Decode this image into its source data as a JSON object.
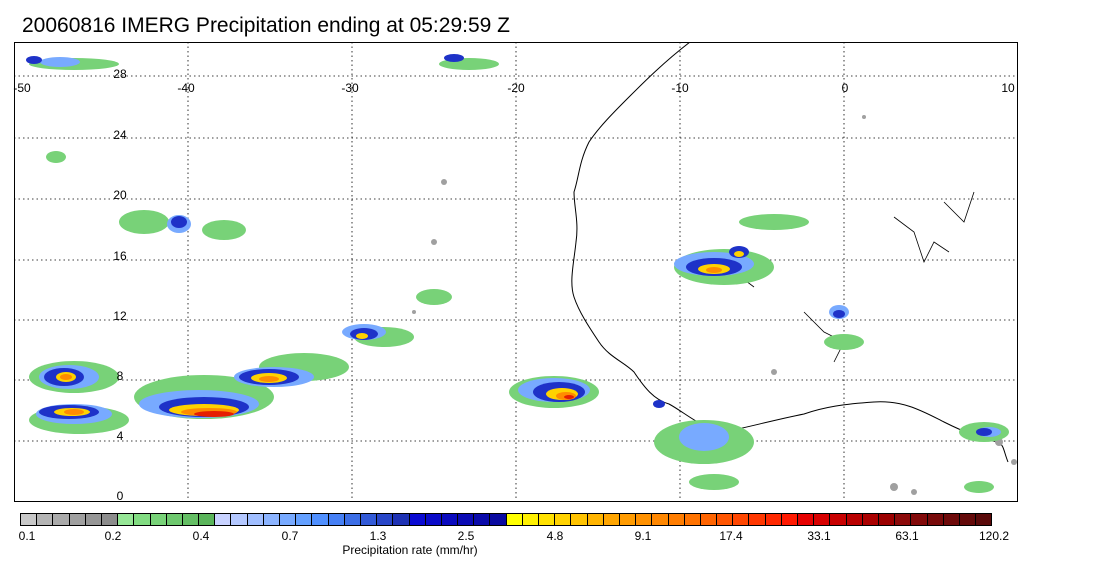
{
  "title": "20060816 IMERG Precipitation ending at 05:29:59 Z",
  "lon_labels": [
    "-50",
    "-40",
    "-30",
    "-20",
    "-10",
    "0",
    "10"
  ],
  "lat_labels": [
    "28",
    "24",
    "20",
    "16",
    "12",
    "8",
    "4",
    "0"
  ],
  "colorbar": {
    "label": "Precipitation rate (mm/hr)",
    "ticks": [
      "0.1",
      "0.2",
      "0.4",
      "0.7",
      "1.3",
      "2.5",
      "4.8",
      "9.1",
      "17.4",
      "33.1",
      "63.1",
      "120.2"
    ],
    "colors": [
      "#c8c8c8",
      "#b4b4b4",
      "#aaaaaa",
      "#a0a0a0",
      "#969696",
      "#8c8c8c",
      "#96e696",
      "#82dc82",
      "#78d278",
      "#6ec86e",
      "#64be64",
      "#5ab45a",
      "#c8d2ff",
      "#b4c8ff",
      "#a0beff",
      "#8cb4ff",
      "#78aaff",
      "#64a0ff",
      "#5090ff",
      "#4680f5",
      "#3c6ee6",
      "#325ad7",
      "#2846c8",
      "#1e32b4",
      "#0a0ad2",
      "#0a0ac8",
      "#0a0abe",
      "#0a0ab4",
      "#0a0aaa",
      "#0a0aa0",
      "#ffff00",
      "#fff000",
      "#ffe100",
      "#ffd200",
      "#ffc300",
      "#ffb400",
      "#ffa500",
      "#ff9b00",
      "#ff9100",
      "#ff8700",
      "#ff7d00",
      "#ff7300",
      "#ff6400",
      "#ff5500",
      "#ff4600",
      "#ff3700",
      "#ff2800",
      "#ff1900",
      "#e60000",
      "#d70000",
      "#c80000",
      "#b90000",
      "#aa0000",
      "#9b0000",
      "#8c0a0a",
      "#820a0a",
      "#780a0a",
      "#6e0a0a",
      "#640a0a",
      "#5a0a0a"
    ]
  },
  "map_colors": {
    "gray": "#a0a0a0",
    "green": "#78d278",
    "lightblue": "#78aaff",
    "blue": "#1e32c8",
    "yellow": "#ffd200",
    "orange": "#ff8c00",
    "red": "#e61e00"
  }
}
